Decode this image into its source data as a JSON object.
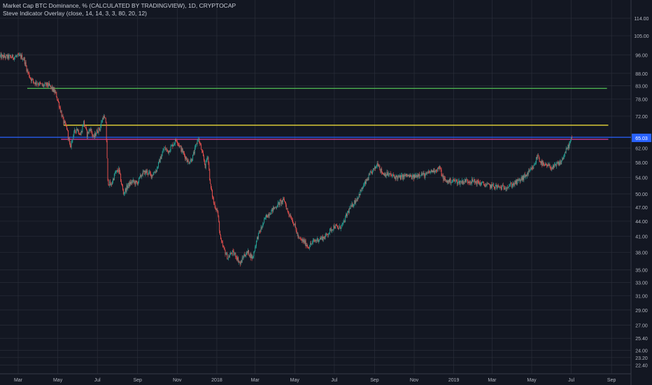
{
  "header": {
    "title": "Market Cap BTC Dominance, % (CALCULATED BY TRADINGVIEW), 1D, CRYPTOCAP",
    "indicator": "Steve Indicator Overlay (close, 14, 14, 3, 3, 80, 20, 12)"
  },
  "colors": {
    "background": "#131722",
    "grid": "#2a2e39",
    "axis_text": "#b2b5be",
    "up": "#26a69a",
    "down": "#ef5350",
    "green_line": "#4caf50",
    "yellow_line": "#ffeb3b",
    "magenta_line": "#e040a0",
    "blue_line": "#2962ff",
    "price_badge": "#2962ff"
  },
  "chart_data": {
    "type": "line",
    "style": "candlestick",
    "y_scale": "log",
    "x_range": [
      "2017-02-01",
      "2019-10-01"
    ],
    "ylim": [
      21.5,
      114
    ],
    "grid": true,
    "current_value_label": "65.03",
    "y_ticks": [
      "114.00",
      "105.00",
      "96.00",
      "88.00",
      "83.00",
      "78.00",
      "72.00",
      "65.03",
      "62.00",
      "58.00",
      "54.00",
      "50.00",
      "47.00",
      "44.00",
      "41.00",
      "38.00",
      "35.00",
      "33.00",
      "31.00",
      "29.00",
      "27.00",
      "25.40",
      "24.00",
      "23.20",
      "22.40"
    ],
    "y_tick_values": [
      114,
      105,
      96,
      88,
      83,
      78,
      72,
      65.03,
      62,
      58,
      54,
      50,
      47,
      44,
      41,
      38,
      35,
      33,
      31,
      29,
      27,
      25.4,
      24,
      23.2,
      22.4
    ],
    "x_ticks": [
      {
        "label": "Mar",
        "date": "2017-03-01"
      },
      {
        "label": "May",
        "date": "2017-05-01"
      },
      {
        "label": "Jul",
        "date": "2017-07-01"
      },
      {
        "label": "Sep",
        "date": "2017-09-01"
      },
      {
        "label": "Nov",
        "date": "2017-11-01"
      },
      {
        "label": "2018",
        "date": "2018-01-01"
      },
      {
        "label": "Mar",
        "date": "2018-03-01"
      },
      {
        "label": "May",
        "date": "2018-05-01"
      },
      {
        "label": "Jul",
        "date": "2018-07-01"
      },
      {
        "label": "Sep",
        "date": "2018-09-01"
      },
      {
        "label": "Nov",
        "date": "2018-11-01"
      },
      {
        "label": "2019",
        "date": "2019-01-01"
      },
      {
        "label": "Mar",
        "date": "2019-03-01"
      },
      {
        "label": "May",
        "date": "2019-05-01"
      },
      {
        "label": "Jul",
        "date": "2019-07-01"
      },
      {
        "label": "Sep",
        "date": "2019-09-01"
      }
    ],
    "series": [
      {
        "points": [
          [
            "2017-02-01",
            95.2
          ],
          [
            "2017-02-20",
            95.0
          ],
          [
            "2017-03-05",
            95.4
          ],
          [
            "2017-03-10",
            94.0
          ],
          [
            "2017-03-15",
            89.0
          ],
          [
            "2017-03-20",
            86.0
          ],
          [
            "2017-03-25",
            84.5
          ],
          [
            "2017-04-01",
            84.0
          ],
          [
            "2017-04-08",
            83.0
          ],
          [
            "2017-04-15",
            83.5
          ],
          [
            "2017-04-22",
            82.0
          ],
          [
            "2017-04-28",
            80.0
          ],
          [
            "2017-05-04",
            75.0
          ],
          [
            "2017-05-10",
            70.0
          ],
          [
            "2017-05-15",
            68.0
          ],
          [
            "2017-05-20",
            62.0
          ],
          [
            "2017-05-25",
            66.0
          ],
          [
            "2017-05-30",
            68.0
          ],
          [
            "2017-06-05",
            66.0
          ],
          [
            "2017-06-10",
            70.0
          ],
          [
            "2017-06-15",
            66.0
          ],
          [
            "2017-06-20",
            68.0
          ],
          [
            "2017-06-25",
            65.0
          ],
          [
            "2017-06-30",
            67.0
          ],
          [
            "2017-07-05",
            68.0
          ],
          [
            "2017-07-10",
            72.0
          ],
          [
            "2017-07-14",
            70.0
          ],
          [
            "2017-07-17",
            53.0
          ],
          [
            "2017-07-22",
            52.0
          ],
          [
            "2017-07-28",
            55.0
          ],
          [
            "2017-08-03",
            56.0
          ],
          [
            "2017-08-10",
            50.0
          ],
          [
            "2017-08-17",
            52.0
          ],
          [
            "2017-08-24",
            53.0
          ],
          [
            "2017-08-31",
            52.5
          ],
          [
            "2017-09-08",
            55.0
          ],
          [
            "2017-09-15",
            55.5
          ],
          [
            "2017-09-22",
            54.5
          ],
          [
            "2017-09-30",
            56.0
          ],
          [
            "2017-10-06",
            59.0
          ],
          [
            "2017-10-12",
            62.0
          ],
          [
            "2017-10-18",
            61.0
          ],
          [
            "2017-10-25",
            63.0
          ],
          [
            "2017-10-31",
            64.5
          ],
          [
            "2017-11-06",
            62.0
          ],
          [
            "2017-11-12",
            60.0
          ],
          [
            "2017-11-18",
            58.0
          ],
          [
            "2017-11-24",
            59.0
          ],
          [
            "2017-11-29",
            62.0
          ],
          [
            "2017-12-03",
            65.0
          ],
          [
            "2017-12-07",
            62.5
          ],
          [
            "2017-12-10",
            60.0
          ],
          [
            "2017-12-14",
            57.0
          ],
          [
            "2017-12-18",
            60.0
          ],
          [
            "2017-12-22",
            52.0
          ],
          [
            "2017-12-27",
            48.0
          ],
          [
            "2018-01-02",
            46.0
          ],
          [
            "2018-01-07",
            40.0
          ],
          [
            "2018-01-12",
            38.5
          ],
          [
            "2018-01-18",
            37.0
          ],
          [
            "2018-01-24",
            38.0
          ],
          [
            "2018-01-30",
            37.5
          ],
          [
            "2018-02-06",
            36.0
          ],
          [
            "2018-02-12",
            37.5
          ],
          [
            "2018-02-18",
            38.0
          ],
          [
            "2018-02-25",
            37.0
          ],
          [
            "2018-03-05",
            41.0
          ],
          [
            "2018-03-12",
            43.0
          ],
          [
            "2018-03-18",
            45.0
          ],
          [
            "2018-03-25",
            46.0
          ],
          [
            "2018-04-01",
            47.0
          ],
          [
            "2018-04-08",
            48.0
          ],
          [
            "2018-04-15",
            48.5
          ],
          [
            "2018-04-20",
            46.0
          ],
          [
            "2018-04-25",
            45.0
          ],
          [
            "2018-05-01",
            43.0
          ],
          [
            "2018-05-07",
            40.5
          ],
          [
            "2018-05-15",
            40.0
          ],
          [
            "2018-05-22",
            39.0
          ],
          [
            "2018-05-30",
            40.0
          ],
          [
            "2018-06-08",
            40.5
          ],
          [
            "2018-06-16",
            40.8
          ],
          [
            "2018-06-24",
            42.0
          ],
          [
            "2018-07-01",
            43.0
          ],
          [
            "2018-07-08",
            42.5
          ],
          [
            "2018-07-15",
            43.5
          ],
          [
            "2018-07-22",
            46.0
          ],
          [
            "2018-07-29",
            47.5
          ],
          [
            "2018-08-05",
            49.0
          ],
          [
            "2018-08-12",
            51.0
          ],
          [
            "2018-08-19",
            53.0
          ],
          [
            "2018-08-26",
            55.0
          ],
          [
            "2018-09-02",
            56.5
          ],
          [
            "2018-09-06",
            58.0
          ],
          [
            "2018-09-10",
            56.0
          ],
          [
            "2018-09-14",
            55.0
          ],
          [
            "2018-09-22",
            54.8
          ],
          [
            "2018-10-01",
            54.2
          ],
          [
            "2018-10-10",
            54.0
          ],
          [
            "2018-10-20",
            54.5
          ],
          [
            "2018-10-30",
            54.0
          ],
          [
            "2018-11-10",
            55.0
          ],
          [
            "2018-11-18",
            54.5
          ],
          [
            "2018-11-26",
            55.5
          ],
          [
            "2018-12-05",
            56.0
          ],
          [
            "2018-12-10",
            56.5
          ],
          [
            "2018-12-15",
            54.0
          ],
          [
            "2018-12-20",
            53.0
          ],
          [
            "2019-01-01",
            53.2
          ],
          [
            "2019-01-10",
            52.8
          ],
          [
            "2019-01-20",
            53.2
          ],
          [
            "2019-02-01",
            53.0
          ],
          [
            "2019-02-12",
            52.5
          ],
          [
            "2019-02-22",
            52.0
          ],
          [
            "2019-03-05",
            51.8
          ],
          [
            "2019-03-15",
            51.5
          ],
          [
            "2019-03-25",
            51.8
          ],
          [
            "2019-04-02",
            52.3
          ],
          [
            "2019-04-10",
            53.0
          ],
          [
            "2019-04-20",
            54.2
          ],
          [
            "2019-04-28",
            55.5
          ],
          [
            "2019-05-05",
            57.0
          ],
          [
            "2019-05-10",
            60.0
          ],
          [
            "2019-05-15",
            58.0
          ],
          [
            "2019-05-20",
            57.0
          ],
          [
            "2019-05-26",
            57.0
          ],
          [
            "2019-06-03",
            56.5
          ],
          [
            "2019-06-10",
            57.5
          ],
          [
            "2019-06-15",
            58.0
          ],
          [
            "2019-06-20",
            60.0
          ],
          [
            "2019-06-25",
            62.0
          ],
          [
            "2019-06-29",
            63.5
          ],
          [
            "2019-07-02",
            65.03
          ]
        ]
      }
    ],
    "horizontal_lines": [
      {
        "value": 82.0,
        "from": "2017-03-15",
        "to": "2019-08-25",
        "color": "#4caf50"
      },
      {
        "value": 69.0,
        "from": "2017-05-10",
        "to": "2019-08-27",
        "color": "#ffeb3b"
      },
      {
        "value": 64.6,
        "from": "2017-05-06",
        "to": "2019-08-27",
        "color": "#e040a0"
      },
      {
        "value": 65.2,
        "from": "2017-02-01",
        "to": "2019-10-01",
        "color": "#2962ff"
      }
    ]
  }
}
